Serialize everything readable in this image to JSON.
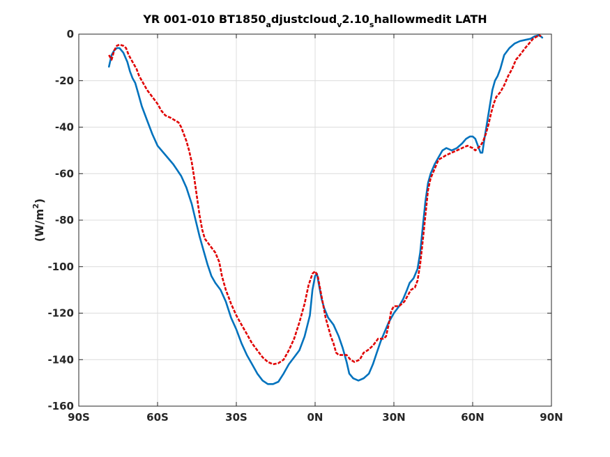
{
  "chart_data": {
    "type": "line",
    "title": {
      "parts": [
        {
          "text": "YR 001-010 BT1850",
          "sub": false
        },
        {
          "text": "a",
          "sub": true
        },
        {
          "text": "djustcloud",
          "sub": false
        },
        {
          "text": "v",
          "sub": true
        },
        {
          "text": "2.10",
          "sub": false
        },
        {
          "text": "s",
          "sub": true
        },
        {
          "text": "hallowmedit LATH",
          "sub": false
        }
      ]
    },
    "ylabel": {
      "prefix": "(W/m",
      "sup": "2",
      "suffix": ")"
    },
    "xlabel": "",
    "xlim": [
      -90,
      90
    ],
    "ylim": [
      -160,
      0
    ],
    "xticks": [
      {
        "value": -90,
        "label": "90S"
      },
      {
        "value": -60,
        "label": "60S"
      },
      {
        "value": -30,
        "label": "30S"
      },
      {
        "value": 0,
        "label": "0N"
      },
      {
        "value": 30,
        "label": "30N"
      },
      {
        "value": 60,
        "label": "60N"
      },
      {
        "value": 90,
        "label": "90N"
      }
    ],
    "yticks": [
      {
        "value": 0,
        "label": "0"
      },
      {
        "value": -20,
        "label": "-20"
      },
      {
        "value": -40,
        "label": "-40"
      },
      {
        "value": -60,
        "label": "-60"
      },
      {
        "value": -80,
        "label": "-80"
      },
      {
        "value": -100,
        "label": "-100"
      },
      {
        "value": -120,
        "label": "-120"
      },
      {
        "value": -140,
        "label": "-140"
      },
      {
        "value": -160,
        "label": "-160"
      }
    ],
    "grid": true,
    "series": [
      {
        "color": "#0072BD",
        "style": "solid",
        "points": [
          [
            -78.5,
            -14
          ],
          [
            -77.5,
            -9
          ],
          [
            -76.5,
            -7
          ],
          [
            -75.5,
            -6
          ],
          [
            -74.5,
            -6
          ],
          [
            -73,
            -8
          ],
          [
            -71.5,
            -12
          ],
          [
            -70.5,
            -16
          ],
          [
            -69.5,
            -19
          ],
          [
            -68.5,
            -21
          ],
          [
            -67.5,
            -25
          ],
          [
            -66,
            -31
          ],
          [
            -64,
            -37
          ],
          [
            -62,
            -43
          ],
          [
            -60,
            -48
          ],
          [
            -57,
            -52
          ],
          [
            -54,
            -56
          ],
          [
            -51,
            -61
          ],
          [
            -49,
            -66
          ],
          [
            -47,
            -73
          ],
          [
            -45.5,
            -80
          ],
          [
            -44,
            -87
          ],
          [
            -42.5,
            -93
          ],
          [
            -41,
            -99
          ],
          [
            -39.5,
            -104
          ],
          [
            -38,
            -107
          ],
          [
            -36,
            -110
          ],
          [
            -34,
            -115
          ],
          [
            -32,
            -122
          ],
          [
            -30,
            -127
          ],
          [
            -28,
            -133
          ],
          [
            -26,
            -138
          ],
          [
            -24,
            -142
          ],
          [
            -22,
            -146
          ],
          [
            -20,
            -149
          ],
          [
            -18,
            -150.5
          ],
          [
            -16,
            -150.5
          ],
          [
            -14,
            -149.5
          ],
          [
            -12,
            -146
          ],
          [
            -10,
            -142
          ],
          [
            -8,
            -139
          ],
          [
            -6,
            -136
          ],
          [
            -4,
            -130
          ],
          [
            -2,
            -121
          ],
          [
            -1,
            -110
          ],
          [
            0,
            -104
          ],
          [
            0.7,
            -103
          ],
          [
            1.5,
            -108
          ],
          [
            2.5,
            -114
          ],
          [
            3.5,
            -118
          ],
          [
            5,
            -122
          ],
          [
            7,
            -125
          ],
          [
            9,
            -130
          ],
          [
            10.5,
            -135
          ],
          [
            12,
            -141
          ],
          [
            13,
            -146
          ],
          [
            14.5,
            -148
          ],
          [
            16.5,
            -149
          ],
          [
            18.5,
            -148
          ],
          [
            20.5,
            -146
          ],
          [
            22,
            -142
          ],
          [
            23.5,
            -137
          ],
          [
            25,
            -132
          ],
          [
            26.5,
            -128
          ],
          [
            28,
            -124
          ],
          [
            30,
            -120
          ],
          [
            32,
            -117
          ],
          [
            33.5,
            -114
          ],
          [
            35,
            -110
          ],
          [
            36,
            -107
          ],
          [
            37.5,
            -105
          ],
          [
            39,
            -101
          ],
          [
            40,
            -94
          ],
          [
            41,
            -83
          ],
          [
            42,
            -72
          ],
          [
            43,
            -64
          ],
          [
            44,
            -60
          ],
          [
            45.5,
            -56
          ],
          [
            47,
            -53
          ],
          [
            48.5,
            -50
          ],
          [
            50,
            -49
          ],
          [
            52,
            -50
          ],
          [
            54,
            -49
          ],
          [
            56,
            -47
          ],
          [
            57.5,
            -45
          ],
          [
            59,
            -44
          ],
          [
            60,
            -44
          ],
          [
            61,
            -45
          ],
          [
            62,
            -48
          ],
          [
            63,
            -51
          ],
          [
            63.7,
            -51
          ],
          [
            64.5,
            -45
          ],
          [
            65.5,
            -38
          ],
          [
            66.5,
            -31
          ],
          [
            67.5,
            -24
          ],
          [
            68.5,
            -20
          ],
          [
            69.5,
            -18
          ],
          [
            70.5,
            -15
          ],
          [
            72,
            -9
          ],
          [
            74,
            -6
          ],
          [
            76,
            -4
          ],
          [
            78,
            -3
          ],
          [
            80,
            -2.5
          ],
          [
            82,
            -2
          ],
          [
            83.5,
            -1
          ],
          [
            85,
            -0.5
          ],
          [
            86,
            -1
          ],
          [
            86.5,
            -1.5
          ]
        ]
      },
      {
        "color": "#E00000",
        "style": "dashed",
        "points": [
          [
            -78.5,
            -9
          ],
          [
            -77.5,
            -11
          ],
          [
            -76.5,
            -7
          ],
          [
            -75.5,
            -5
          ],
          [
            -74.5,
            -4.5
          ],
          [
            -73,
            -5
          ],
          [
            -72,
            -6
          ],
          [
            -71,
            -9
          ],
          [
            -70,
            -11
          ],
          [
            -69,
            -13
          ],
          [
            -68,
            -15
          ],
          [
            -67,
            -18
          ],
          [
            -65.5,
            -21
          ],
          [
            -64,
            -24
          ],
          [
            -62,
            -27
          ],
          [
            -60,
            -30
          ],
          [
            -58.5,
            -33
          ],
          [
            -57,
            -35
          ],
          [
            -55,
            -36
          ],
          [
            -53.5,
            -37
          ],
          [
            -52,
            -38
          ],
          [
            -51,
            -40
          ],
          [
            -50,
            -43
          ],
          [
            -49,
            -46
          ],
          [
            -48,
            -50
          ],
          [
            -47,
            -55
          ],
          [
            -46,
            -62
          ],
          [
            -45,
            -70
          ],
          [
            -44,
            -78
          ],
          [
            -43,
            -84
          ],
          [
            -42,
            -88
          ],
          [
            -40,
            -91
          ],
          [
            -38,
            -94
          ],
          [
            -36.5,
            -98
          ],
          [
            -35.5,
            -104
          ],
          [
            -34,
            -110
          ],
          [
            -32,
            -116
          ],
          [
            -30,
            -121
          ],
          [
            -28,
            -125
          ],
          [
            -26,
            -129
          ],
          [
            -24,
            -133
          ],
          [
            -22,
            -136
          ],
          [
            -20,
            -139
          ],
          [
            -18,
            -141
          ],
          [
            -16,
            -142
          ],
          [
            -14,
            -141.5
          ],
          [
            -12,
            -140
          ],
          [
            -10,
            -136
          ],
          [
            -8,
            -131
          ],
          [
            -6,
            -124
          ],
          [
            -4,
            -116
          ],
          [
            -2.5,
            -108
          ],
          [
            -1,
            -103
          ],
          [
            0,
            -102
          ],
          [
            1,
            -104
          ],
          [
            2,
            -110
          ],
          [
            3,
            -116
          ],
          [
            4,
            -122
          ],
          [
            5,
            -126
          ],
          [
            6,
            -130
          ],
          [
            7,
            -133
          ],
          [
            8,
            -137
          ],
          [
            9,
            -138
          ],
          [
            10.5,
            -138
          ],
          [
            12,
            -138
          ],
          [
            13.5,
            -140
          ],
          [
            15,
            -141
          ],
          [
            17,
            -140
          ],
          [
            18.5,
            -137
          ],
          [
            20,
            -136
          ],
          [
            22,
            -134
          ],
          [
            24,
            -131
          ],
          [
            26,
            -131
          ],
          [
            27,
            -130
          ],
          [
            28,
            -125
          ],
          [
            29,
            -119
          ],
          [
            30,
            -117
          ],
          [
            32,
            -117
          ],
          [
            34,
            -115
          ],
          [
            35,
            -113
          ],
          [
            36.5,
            -110
          ],
          [
            38,
            -109
          ],
          [
            39,
            -106
          ],
          [
            40,
            -99
          ],
          [
            41,
            -89
          ],
          [
            42,
            -78
          ],
          [
            43,
            -67
          ],
          [
            44,
            -62
          ],
          [
            45.5,
            -58
          ],
          [
            47,
            -54
          ],
          [
            48.5,
            -53
          ],
          [
            50,
            -52
          ],
          [
            52,
            -51
          ],
          [
            54,
            -50
          ],
          [
            56,
            -49
          ],
          [
            58,
            -48
          ],
          [
            60,
            -49
          ],
          [
            61,
            -50
          ],
          [
            62,
            -49
          ],
          [
            63,
            -48
          ],
          [
            64,
            -46
          ],
          [
            65,
            -43
          ],
          [
            66,
            -39
          ],
          [
            67,
            -34
          ],
          [
            68,
            -30
          ],
          [
            69,
            -27
          ],
          [
            70.5,
            -25
          ],
          [
            72,
            -22
          ],
          [
            73.5,
            -18
          ],
          [
            75,
            -15
          ],
          [
            76.5,
            -11
          ],
          [
            78,
            -9
          ],
          [
            80,
            -6
          ],
          [
            81.5,
            -4
          ],
          [
            83,
            -2
          ],
          [
            84.5,
            -1
          ],
          [
            85.5,
            -0.5
          ],
          [
            86,
            -1
          ]
        ]
      }
    ]
  }
}
